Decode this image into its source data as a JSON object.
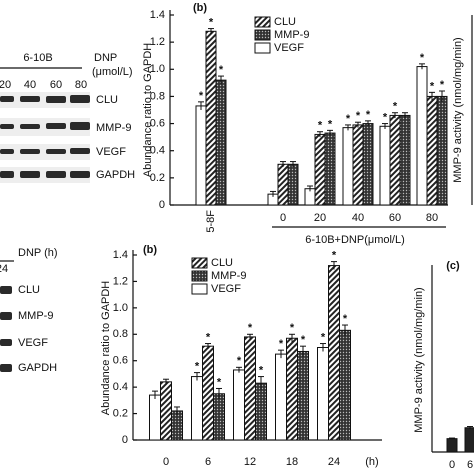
{
  "chart_data": [
    {
      "type": "bar",
      "title": "(b)",
      "ylabel": "Abundance ratio to GAPDH",
      "xlabel": "6-10B+DNP(μmol/L)",
      "categories": [
        "5-8F",
        "0",
        "20",
        "40",
        "60",
        "80"
      ],
      "series": [
        {
          "name": "CLU",
          "color": "#222222",
          "pattern": "diagonal",
          "values": [
            1.28,
            0.3,
            0.52,
            0.59,
            0.66,
            0.8
          ],
          "errors": [
            0.02,
            0.02,
            0.02,
            0.02,
            0.02,
            0.03
          ],
          "significance": [
            "*",
            null,
            "*",
            "*",
            "*",
            "*"
          ]
        },
        {
          "name": "MMP-9",
          "color": "#222222",
          "pattern": "dots",
          "values": [
            0.92,
            0.3,
            0.53,
            0.6,
            0.66,
            0.8
          ],
          "errors": [
            0.03,
            0.02,
            0.02,
            0.02,
            0.02,
            0.04
          ],
          "significance": [
            "*",
            null,
            "*",
            "*",
            null,
            "*"
          ]
        },
        {
          "name": "VEGF",
          "color": "#ffffff",
          "pattern": "solid",
          "values": [
            0.73,
            0.08,
            0.12,
            0.57,
            0.58,
            1.02
          ],
          "errors": [
            0.03,
            0.02,
            0.02,
            0.02,
            0.02,
            0.02
          ],
          "significance": [
            "*",
            null,
            null,
            "*",
            "*",
            "*"
          ]
        }
      ],
      "ylim": [
        0,
        1.4
      ],
      "yticks": [
        0,
        0.2,
        0.4,
        0.6,
        0.8,
        {
          "value": 1,
          "label": "1.0"
        },
        1.2,
        1.4
      ]
    },
    {
      "type": "bar",
      "title": "(b)",
      "ylabel": "Abundance ratio to GAPDH",
      "xlabel": "(h)",
      "categories": [
        "0",
        "6",
        "12",
        "18",
        "24"
      ],
      "series": [
        {
          "name": "CLU",
          "color": "#222222",
          "pattern": "diagonal",
          "values": [
            0.44,
            0.71,
            0.78,
            0.77,
            1.32
          ],
          "errors": [
            0.02,
            0.02,
            0.02,
            0.03,
            0.03
          ],
          "significance": [
            null,
            "*",
            "*",
            "*",
            "*"
          ]
        },
        {
          "name": "MMP-9",
          "color": "#222222",
          "pattern": "dots",
          "values": [
            0.22,
            0.35,
            0.43,
            0.67,
            0.83
          ],
          "errors": [
            0.03,
            0.04,
            0.05,
            0.04,
            0.04
          ],
          "significance": [
            null,
            "*",
            "*",
            "*",
            "*"
          ]
        },
        {
          "name": "VEGF",
          "color": "#ffffff",
          "pattern": "solid",
          "values": [
            0.34,
            0.48,
            0.53,
            0.65,
            0.7
          ],
          "errors": [
            0.03,
            0.03,
            0.02,
            0.03,
            0.03
          ],
          "significance": [
            null,
            "*",
            "*",
            "*",
            "*"
          ]
        }
      ],
      "ylim": [
        0,
        1.4
      ],
      "yticks": [
        0,
        0.2,
        0.4,
        0.6,
        0.8,
        {
          "value": 1,
          "label": "1.0"
        },
        1.2,
        1.4
      ]
    },
    {
      "type": "bar",
      "title": "(c)",
      "ylabel": "MMP-9 activity (nmol/mg/min)",
      "categories": [
        "0",
        "6"
      ],
      "series": [
        {
          "color": "#222222",
          "pattern": "solid",
          "values": [
            0.22,
            0.4
          ],
          "errors": [
            0.01,
            0.02
          ]
        }
      ],
      "ylim": [
        0,
        3
      ]
    }
  ],
  "extra_labels": {
    "top_right_ylabel": "MMP-9 activity (nmol/mg/min)"
  },
  "blots": {
    "top": {
      "group": "6-10B",
      "treatment": "DNP",
      "unit": "(μmol/L)",
      "lanes": [
        "20",
        "40",
        "60",
        "80"
      ],
      "rows": [
        "CLU",
        "MMP-9",
        "VEGF",
        "GAPDH"
      ]
    },
    "bottom": {
      "treatment": "DNP (h)",
      "lanes": [
        "24"
      ],
      "rows": [
        "CLU",
        "MMP-9",
        "VEGF",
        "GAPDH"
      ]
    }
  }
}
